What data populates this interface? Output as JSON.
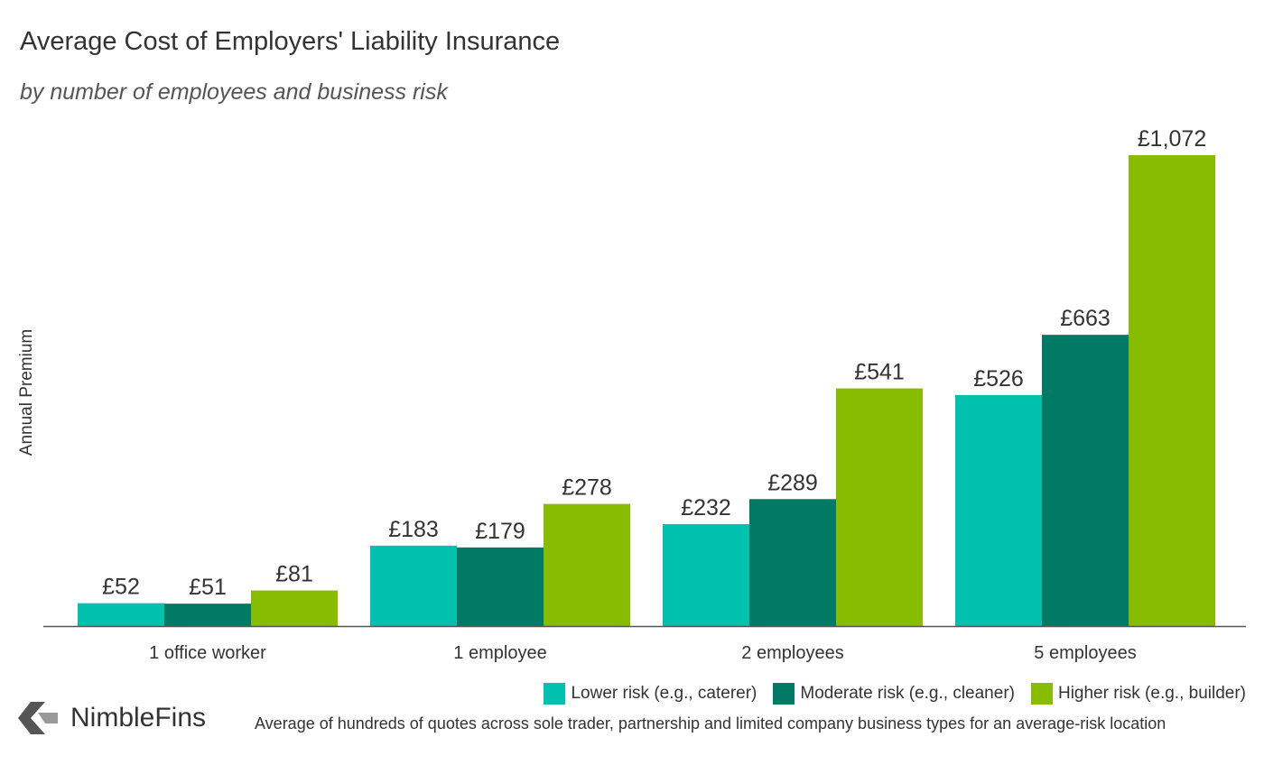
{
  "chart_data": {
    "type": "bar",
    "title": "Average Cost of Employers' Liability Insurance",
    "subtitle": "by number of employees and business risk",
    "xlabel": "",
    "ylabel": "Annual Premium",
    "ylim": [
      0,
      1072
    ],
    "grid": false,
    "legend_position": "bottom-right",
    "categories": [
      "1 office worker",
      "1 employee",
      "2 employees",
      "5 employees"
    ],
    "series": [
      {
        "name": "Lower risk (e.g., caterer)",
        "color": "#00C1AE",
        "values": [
          52,
          183,
          232,
          526
        ],
        "labels": [
          "£52",
          "£183",
          "£232",
          "£526"
        ]
      },
      {
        "name": "Moderate risk (e.g., cleaner)",
        "color": "#007A65",
        "values": [
          51,
          179,
          289,
          663
        ],
        "labels": [
          "£51",
          "£179",
          "£289",
          "£663"
        ]
      },
      {
        "name": "Higher risk (e.g., builder)",
        "color": "#87BC00",
        "values": [
          81,
          278,
          541,
          1072
        ],
        "labels": [
          "£81",
          "£278",
          "£541",
          "£1,072"
        ]
      }
    ]
  },
  "branding": {
    "logo_text": "NimbleFins",
    "logo_icon": "nimblefins-chevron-icon"
  },
  "footnote": "Average of hundreds of quotes across sole trader, partnership and limited company business types for an average-risk location"
}
